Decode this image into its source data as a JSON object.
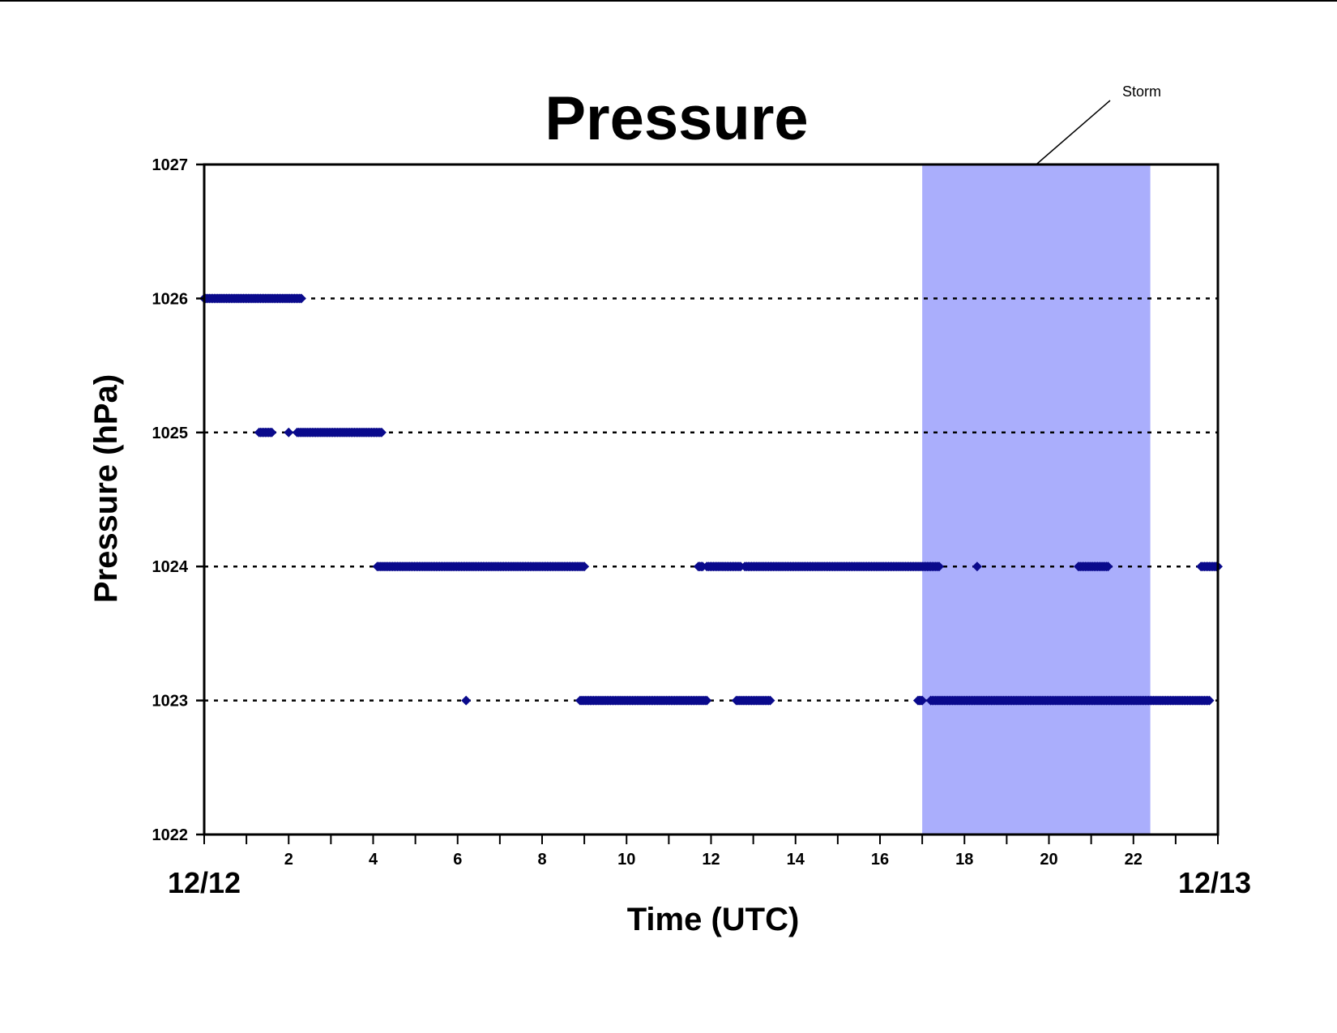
{
  "chart_data": {
    "type": "scatter",
    "title": "Pressure",
    "xlabel": "Time (UTC)",
    "ylabel": "Pressure (hPa)",
    "xlim": [
      0,
      24
    ],
    "ylim": [
      1022,
      1027
    ],
    "x_ticks": [
      2,
      4,
      6,
      8,
      10,
      12,
      14,
      16,
      18,
      20,
      22
    ],
    "x_minor_step": 1,
    "y_ticks": [
      1022,
      1023,
      1024,
      1025,
      1026,
      1027
    ],
    "date_labels": {
      "start": "12/12",
      "end": "12/13"
    },
    "grid": "horizontal dotted at each y tick",
    "colors": {
      "points": "#0a0a8c",
      "storm_band": "#aaaefc"
    },
    "annotation": {
      "text": "Storm",
      "x_start": 17.0,
      "x_end": 22.4
    },
    "series": [
      {
        "runs": [
          {
            "y": 1026,
            "x_from": 0.0,
            "x_to": 2.3
          },
          {
            "y": 1025,
            "x_from": 1.3,
            "x_to": 1.6
          },
          {
            "y": 1025,
            "x_from": 2.0,
            "x_to": 2.0
          },
          {
            "y": 1025,
            "x_from": 2.2,
            "x_to": 4.2
          },
          {
            "y": 1024,
            "x_from": 4.1,
            "x_to": 9.0
          },
          {
            "y": 1024,
            "x_from": 11.7,
            "x_to": 11.8
          },
          {
            "y": 1024,
            "x_from": 11.9,
            "x_to": 12.7
          },
          {
            "y": 1024,
            "x_from": 12.8,
            "x_to": 17.4
          },
          {
            "y": 1024,
            "x_from": 18.3,
            "x_to": 18.3
          },
          {
            "y": 1024,
            "x_from": 20.7,
            "x_to": 21.4
          },
          {
            "y": 1024,
            "x_from": 23.6,
            "x_to": 24.0
          },
          {
            "y": 1023,
            "x_from": 6.2,
            "x_to": 6.2
          },
          {
            "y": 1023,
            "x_from": 8.9,
            "x_to": 11.9
          },
          {
            "y": 1023,
            "x_from": 12.6,
            "x_to": 13.4
          },
          {
            "y": 1023,
            "x_from": 16.9,
            "x_to": 17.0
          },
          {
            "y": 1023,
            "x_from": 17.2,
            "x_to": 23.8
          }
        ]
      }
    ]
  }
}
